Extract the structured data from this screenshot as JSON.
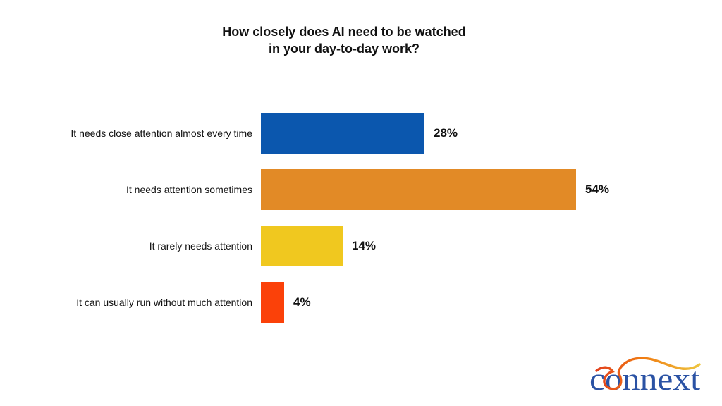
{
  "page": {
    "background": "#ffffff"
  },
  "chart_data": {
    "type": "bar",
    "orientation": "horizontal",
    "title": "How closely does AI need to be watched in your day-to-day work?",
    "title_lines": [
      "How closely does AI need to be watched",
      "in your day-to-day work?"
    ],
    "categories": [
      "It needs close attention almost every time",
      "It needs attention sometimes",
      "It rarely needs attention",
      "It can usually run without much attention"
    ],
    "values": [
      28,
      54,
      14,
      4
    ],
    "value_labels": [
      "28%",
      "54%",
      "14%",
      "4%"
    ],
    "colors": [
      "#0b57ae",
      "#e28a26",
      "#f0c81f",
      "#fb4109"
    ],
    "xlim": [
      0,
      60
    ],
    "grid": false,
    "legend": "none",
    "xlabel": "",
    "ylabel": ""
  },
  "logo": {
    "text": "connext",
    "text_color": "#2a52a4",
    "swoosh_colors": [
      "#e2401d",
      "#f07c12",
      "#eec63f"
    ]
  }
}
